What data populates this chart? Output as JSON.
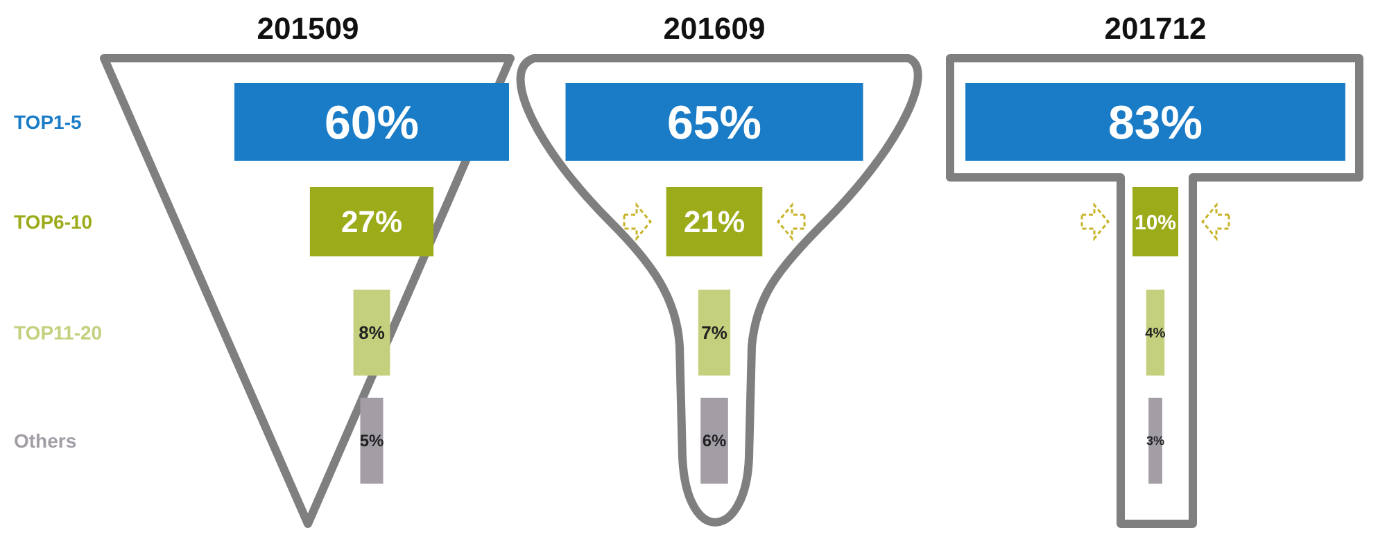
{
  "chart_data": [
    {
      "type": "other",
      "title": "201509",
      "categories": [
        "TOP1-5",
        "TOP6-10",
        "TOP11-20",
        "Others"
      ],
      "values": [
        60,
        27,
        8,
        5
      ],
      "value_labels": [
        "60%",
        "27%",
        "8%",
        "5%"
      ],
      "colors": [
        "#1a7cc6",
        "#9cab1a",
        "#c5d07e",
        "#a39ea6"
      ]
    },
    {
      "type": "other",
      "title": "201609",
      "values": [
        65,
        21,
        7,
        6
      ],
      "value_labels": [
        "65%",
        "21%",
        "7%",
        "6%"
      ],
      "colors": [
        "#1a7cc6",
        "#9cab1a",
        "#c5d07e",
        "#a39ea6"
      ]
    },
    {
      "type": "other",
      "title": "201712",
      "values": [
        83,
        10,
        4,
        3
      ],
      "value_labels": [
        "83%",
        "10%",
        "4%",
        "3%"
      ],
      "colors": [
        "#1a7cc6",
        "#9cab1a",
        "#c5d07e",
        "#a39ea6"
      ]
    }
  ]
}
